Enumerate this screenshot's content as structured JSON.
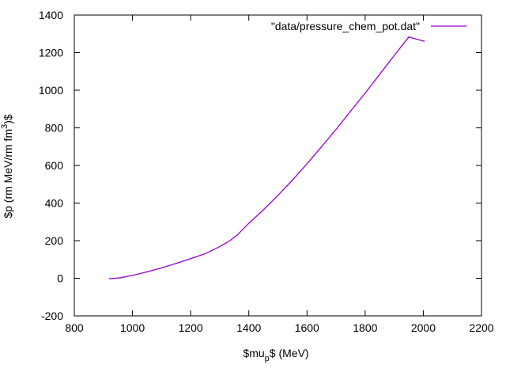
{
  "chart_data": {
    "type": "line",
    "xlabel": "$mu_p$ (MeV)",
    "xlabel_parts": {
      "main": "$mu",
      "sub": "p",
      "tail": "$ (MeV)"
    },
    "ylabel": "$p (rm MeV/rm fm^3)$",
    "ylabel_parts": {
      "main": "$p (rm MeV/rm fm",
      "sup": "3",
      "tail": ")$"
    },
    "xlim": [
      800,
      2200
    ],
    "ylim": [
      -200,
      1400
    ],
    "x_ticks": [
      "800",
      "1000",
      "1200",
      "1400",
      "1600",
      "1800",
      "2000",
      "2200"
    ],
    "y_ticks": [
      "-200",
      "0",
      "200",
      "400",
      "600",
      "800",
      "1000",
      "1200",
      "1400"
    ],
    "grid": false,
    "legend_placement": "top-right",
    "series": [
      {
        "name": "\"data/pressure_chem_pot.dat\"",
        "color": "#9400d3",
        "x": [
          920,
          940,
          960,
          1000,
          1050,
          1100,
          1150,
          1200,
          1250,
          1300,
          1335,
          1360,
          1400,
          1450,
          1500,
          1550,
          1600,
          1650,
          1700,
          1750,
          1800,
          1850,
          1900,
          1950,
          2005
        ],
        "y": [
          -3,
          0,
          3,
          15,
          34,
          55,
          79,
          104,
          131,
          168,
          200,
          230,
          292,
          364,
          441,
          522,
          609,
          700,
          792,
          889,
          985,
          1085,
          1185,
          1283,
          1260
        ]
      }
    ]
  }
}
